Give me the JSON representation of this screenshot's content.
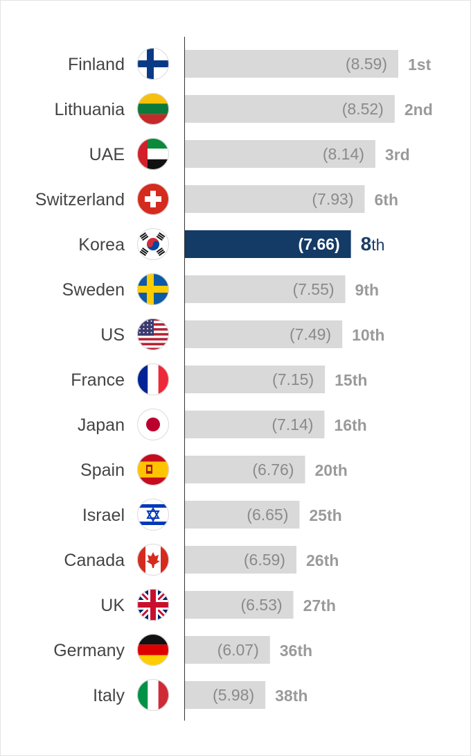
{
  "chart_data": {
    "type": "bar",
    "orientation": "horizontal",
    "highlight": "Korea",
    "colors": {
      "bar": "#d9d9d9",
      "highlight": "#143a66",
      "value_text": "#8a8a8a",
      "rank_text": "#9a9a9a",
      "highlight_rank_text": "#1b3c66"
    },
    "xlim": [
      0,
      8.59
    ],
    "categories": [
      {
        "country": "Finland",
        "flag": "finland-flag-icon",
        "value": 8.59,
        "value_label": "(8.59)",
        "rank_num": "1",
        "rank_suffix": "st"
      },
      {
        "country": "Lithuania",
        "flag": "lithuania-flag-icon",
        "value": 8.52,
        "value_label": "(8.52)",
        "rank_num": "2",
        "rank_suffix": "nd"
      },
      {
        "country": "UAE",
        "flag": "uae-flag-icon",
        "value": 8.14,
        "value_label": "(8.14)",
        "rank_num": "3",
        "rank_suffix": "rd"
      },
      {
        "country": "Switzerland",
        "flag": "switzerland-flag-icon",
        "value": 7.93,
        "value_label": "(7.93)",
        "rank_num": "6",
        "rank_suffix": "th"
      },
      {
        "country": "Korea",
        "flag": "korea-flag-icon",
        "value": 7.66,
        "value_label": "(7.66)",
        "rank_num": "8",
        "rank_suffix": "th"
      },
      {
        "country": "Sweden",
        "flag": "sweden-flag-icon",
        "value": 7.55,
        "value_label": "(7.55)",
        "rank_num": "9",
        "rank_suffix": "th"
      },
      {
        "country": "US",
        "flag": "us-flag-icon",
        "value": 7.49,
        "value_label": "(7.49)",
        "rank_num": "10",
        "rank_suffix": "th"
      },
      {
        "country": "France",
        "flag": "france-flag-icon",
        "value": 7.15,
        "value_label": "(7.15)",
        "rank_num": "15",
        "rank_suffix": "th"
      },
      {
        "country": "Japan",
        "flag": "japan-flag-icon",
        "value": 7.14,
        "value_label": "(7.14)",
        "rank_num": "16",
        "rank_suffix": "th"
      },
      {
        "country": "Spain",
        "flag": "spain-flag-icon",
        "value": 6.76,
        "value_label": "(6.76)",
        "rank_num": "20",
        "rank_suffix": "th"
      },
      {
        "country": "Israel",
        "flag": "israel-flag-icon",
        "value": 6.65,
        "value_label": "(6.65)",
        "rank_num": "25",
        "rank_suffix": "th"
      },
      {
        "country": "Canada",
        "flag": "canada-flag-icon",
        "value": 6.59,
        "value_label": "(6.59)",
        "rank_num": "26",
        "rank_suffix": "th"
      },
      {
        "country": "UK",
        "flag": "uk-flag-icon",
        "value": 6.53,
        "value_label": "(6.53)",
        "rank_num": "27",
        "rank_suffix": "th"
      },
      {
        "country": "Germany",
        "flag": "germany-flag-icon",
        "value": 6.07,
        "value_label": "(6.07)",
        "rank_num": "36",
        "rank_suffix": "th"
      },
      {
        "country": "Italy",
        "flag": "italy-flag-icon",
        "value": 5.98,
        "value_label": "(5.98)",
        "rank_num": "38",
        "rank_suffix": "th"
      }
    ]
  }
}
